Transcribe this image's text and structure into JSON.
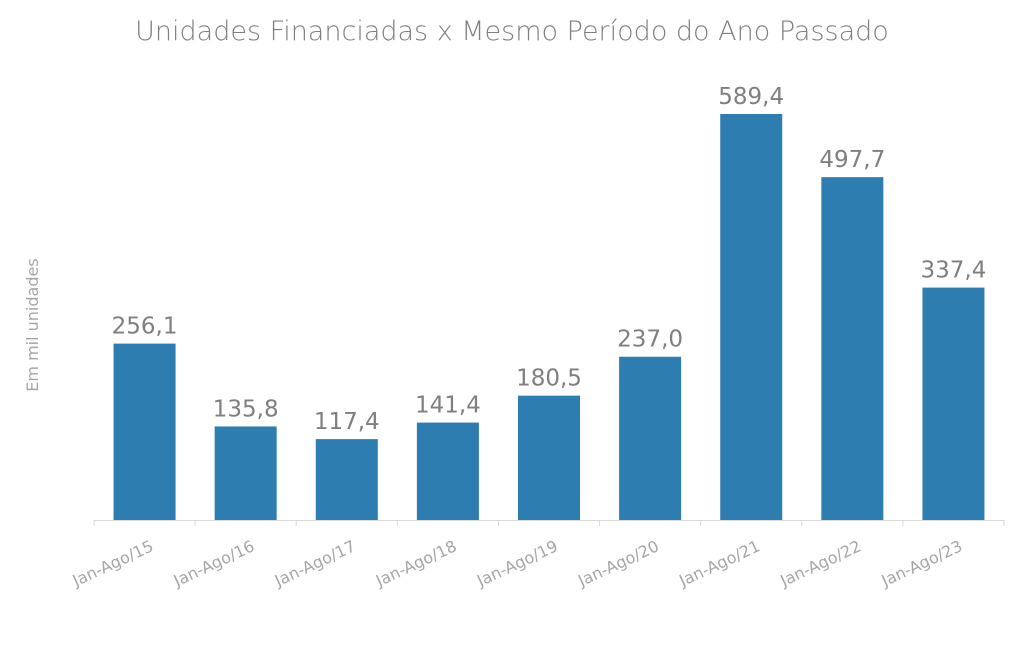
{
  "chart_data": {
    "type": "bar",
    "title": "Unidades Financiadas x Mesmo Período do Ano Passado",
    "xlabel": "",
    "ylabel": "Em mil unidades",
    "categories": [
      "Jan-Ago/15",
      "Jan-Ago/16",
      "Jan-Ago/17",
      "Jan-Ago/18",
      "Jan-Ago/19",
      "Jan-Ago/20",
      "Jan-Ago/21",
      "Jan-Ago/22",
      "Jan-Ago/23"
    ],
    "values": [
      256.1,
      135.8,
      117.4,
      141.4,
      180.5,
      237.0,
      589.4,
      497.7,
      337.4
    ],
    "value_labels": [
      "256,1",
      "135,8",
      "117,4",
      "141,4",
      "180,5",
      "237,0",
      "589,4",
      "497,7",
      "337,4"
    ],
    "ylim": [
      0,
      600
    ],
    "grid": false,
    "legend": "none",
    "colors": {
      "bar": "#2e7db1",
      "title": "#7f7f7f",
      "labels": "#7f7f7f",
      "ticks": "#a6a6a6",
      "axis": "#d9d9d9"
    }
  }
}
